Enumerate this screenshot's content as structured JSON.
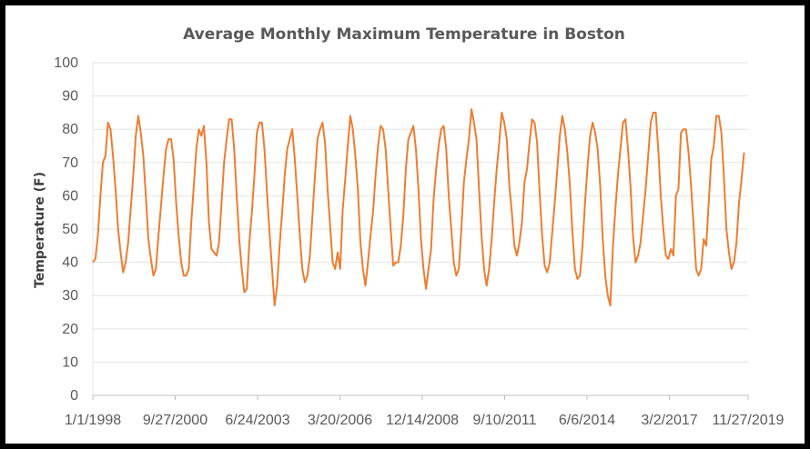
{
  "chart_data": {
    "type": "line",
    "title": "Average Monthly  Maximum Temperature  in Boston",
    "xlabel": "",
    "ylabel": "Temperature (F)",
    "ylim": [
      0,
      100
    ],
    "yticks": [
      "0",
      "10",
      "20",
      "30",
      "40",
      "50",
      "60",
      "70",
      "80",
      "90",
      "100"
    ],
    "xticks": [
      "1/1/1998",
      "9/27/2000",
      "6/24/2003",
      "3/20/2006",
      "12/14/2008",
      "9/10/2011",
      "6/6/2014",
      "3/2/2017",
      "11/27/2019"
    ],
    "grid": "horizontal",
    "legend": "none",
    "colors": {
      "line": "#ed7d31"
    },
    "x_start": "1998-01",
    "x_interval": "monthly",
    "series": [
      {
        "values": [
          40,
          41,
          48,
          60,
          70,
          72,
          82,
          80,
          72,
          62,
          50,
          43,
          37,
          40,
          46,
          56,
          66,
          78,
          84,
          79,
          72,
          60,
          47,
          41,
          36,
          38,
          48,
          57,
          66,
          74,
          77,
          77,
          71,
          58,
          48,
          40,
          36,
          36,
          38,
          52,
          63,
          74,
          80,
          78,
          81,
          70,
          52,
          44,
          43,
          42,
          46,
          58,
          70,
          77,
          83,
          83,
          74,
          60,
          47,
          38,
          31,
          32,
          46,
          55,
          66,
          79,
          82,
          82,
          74,
          61,
          49,
          38,
          27,
          33,
          45,
          55,
          66,
          74,
          77,
          80,
          71,
          60,
          48,
          38,
          34,
          36,
          42,
          54,
          66,
          77,
          80,
          82,
          76,
          62,
          51,
          40,
          38,
          43,
          38,
          56,
          65,
          75,
          84,
          80,
          72,
          62,
          46,
          38,
          33,
          40,
          48,
          55,
          66,
          75,
          81,
          80,
          74,
          62,
          50,
          39,
          40,
          40,
          45,
          54,
          68,
          77,
          79,
          81,
          74,
          62,
          47,
          38,
          32,
          38,
          44,
          59,
          68,
          75,
          80,
          81,
          74,
          60,
          50,
          40,
          36,
          38,
          50,
          64,
          71,
          77,
          86,
          82,
          77,
          62,
          48,
          38,
          33,
          38,
          47,
          58,
          68,
          76,
          85,
          82,
          77,
          63,
          55,
          45,
          42,
          46,
          52,
          64,
          68,
          76,
          83,
          82,
          76,
          61,
          48,
          39,
          37,
          40,
          49,
          58,
          68,
          78,
          84,
          80,
          73,
          63,
          49,
          38,
          35,
          36,
          45,
          58,
          69,
          78,
          82,
          79,
          74,
          63,
          47,
          36,
          30,
          27,
          44,
          56,
          66,
          74,
          82,
          83,
          74,
          63,
          48,
          40,
          42,
          46,
          54,
          62,
          72,
          82,
          85,
          85,
          74,
          60,
          50,
          42,
          41,
          44,
          42,
          60,
          62,
          79,
          80,
          80,
          73,
          63,
          51,
          38,
          36,
          38,
          47,
          45,
          58,
          71,
          75,
          84,
          84,
          79,
          66,
          50,
          43,
          38,
          40,
          46,
          58,
          65,
          73
        ]
      }
    ]
  }
}
